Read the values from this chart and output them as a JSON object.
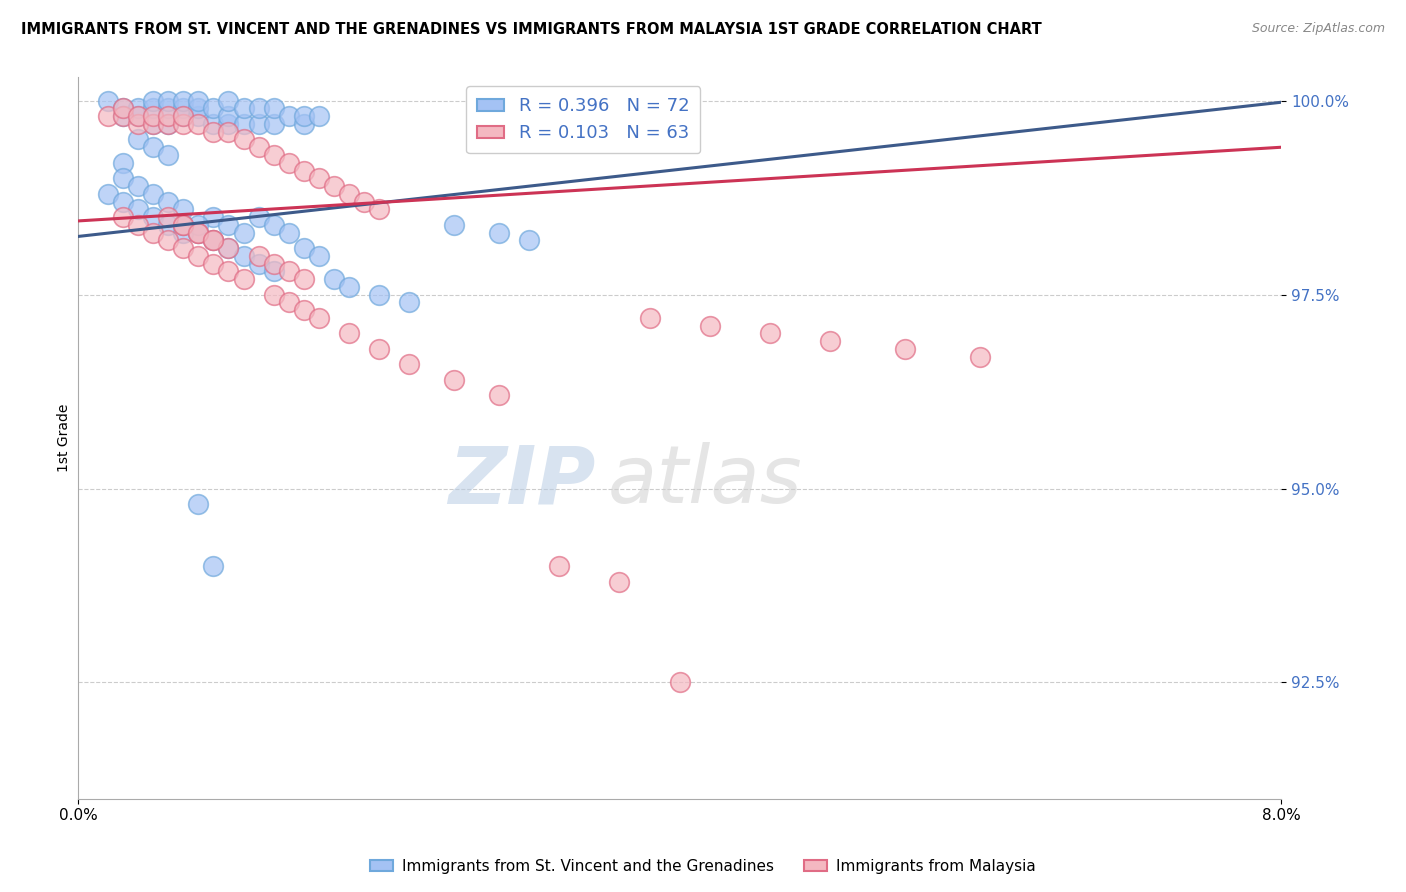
{
  "title": "IMMIGRANTS FROM ST. VINCENT AND THE GRENADINES VS IMMIGRANTS FROM MALAYSIA 1ST GRADE CORRELATION CHART",
  "source": "Source: ZipAtlas.com",
  "ylabel": "1st Grade",
  "blue_label": "Immigrants from St. Vincent and the Grenadines",
  "pink_label": "Immigrants from Malaysia",
  "blue_R": "0.396",
  "blue_N": "72",
  "pink_R": "0.103",
  "pink_N": "63",
  "blue_color": "#a4c2f4",
  "pink_color": "#f4b8c1",
  "blue_edge_color": "#6fa8dc",
  "pink_edge_color": "#e06c85",
  "blue_line_color": "#3d5a8a",
  "pink_line_color": "#cc3355",
  "watermark_color": "#dde8f5",
  "ytick_color": "#4472c4",
  "blue_x": [
    0.002,
    0.003,
    0.003,
    0.004,
    0.004,
    0.005,
    0.005,
    0.005,
    0.006,
    0.006,
    0.006,
    0.007,
    0.007,
    0.007,
    0.008,
    0.008,
    0.008,
    0.009,
    0.009,
    0.01,
    0.01,
    0.01,
    0.011,
    0.011,
    0.012,
    0.012,
    0.013,
    0.013,
    0.014,
    0.015,
    0.015,
    0.016,
    0.004,
    0.005,
    0.006,
    0.003,
    0.003,
    0.004,
    0.005,
    0.006,
    0.007,
    0.007,
    0.008,
    0.009,
    0.01,
    0.011,
    0.012,
    0.013,
    0.017,
    0.018,
    0.02,
    0.022,
    0.025,
    0.028,
    0.03,
    0.015,
    0.016,
    0.009,
    0.01,
    0.011,
    0.012,
    0.013,
    0.014,
    0.002,
    0.003,
    0.004,
    0.005,
    0.006,
    0.007,
    0.008,
    0.008,
    0.009
  ],
  "blue_y": [
    1.0,
    0.999,
    0.998,
    0.998,
    0.999,
    0.997,
    0.999,
    1.0,
    0.997,
    0.999,
    1.0,
    0.998,
    0.999,
    1.0,
    0.998,
    0.999,
    1.0,
    0.997,
    0.999,
    0.997,
    0.998,
    1.0,
    0.997,
    0.999,
    0.997,
    0.999,
    0.997,
    0.999,
    0.998,
    0.997,
    0.998,
    0.998,
    0.995,
    0.994,
    0.993,
    0.992,
    0.99,
    0.989,
    0.988,
    0.987,
    0.986,
    0.984,
    0.983,
    0.982,
    0.981,
    0.98,
    0.979,
    0.978,
    0.977,
    0.976,
    0.975,
    0.974,
    0.984,
    0.983,
    0.982,
    0.981,
    0.98,
    0.985,
    0.984,
    0.983,
    0.985,
    0.984,
    0.983,
    0.988,
    0.987,
    0.986,
    0.985,
    0.984,
    0.983,
    0.984,
    0.948,
    0.94
  ],
  "pink_x": [
    0.002,
    0.003,
    0.003,
    0.004,
    0.004,
    0.005,
    0.005,
    0.006,
    0.006,
    0.007,
    0.007,
    0.008,
    0.009,
    0.01,
    0.011,
    0.012,
    0.013,
    0.014,
    0.015,
    0.016,
    0.017,
    0.018,
    0.019,
    0.02,
    0.007,
    0.008,
    0.009,
    0.01,
    0.003,
    0.004,
    0.005,
    0.006,
    0.007,
    0.008,
    0.009,
    0.01,
    0.011,
    0.013,
    0.014,
    0.015,
    0.016,
    0.018,
    0.02,
    0.022,
    0.025,
    0.028,
    0.012,
    0.013,
    0.014,
    0.015,
    0.006,
    0.007,
    0.008,
    0.009,
    0.038,
    0.042,
    0.046,
    0.05,
    0.055,
    0.06,
    0.032,
    0.036,
    0.04
  ],
  "pink_y": [
    0.998,
    0.998,
    0.999,
    0.997,
    0.998,
    0.997,
    0.998,
    0.997,
    0.998,
    0.997,
    0.998,
    0.997,
    0.996,
    0.996,
    0.995,
    0.994,
    0.993,
    0.992,
    0.991,
    0.99,
    0.989,
    0.988,
    0.987,
    0.986,
    0.984,
    0.983,
    0.982,
    0.981,
    0.985,
    0.984,
    0.983,
    0.982,
    0.981,
    0.98,
    0.979,
    0.978,
    0.977,
    0.975,
    0.974,
    0.973,
    0.972,
    0.97,
    0.968,
    0.966,
    0.964,
    0.962,
    0.98,
    0.979,
    0.978,
    0.977,
    0.985,
    0.984,
    0.983,
    0.982,
    0.972,
    0.971,
    0.97,
    0.969,
    0.968,
    0.967,
    0.94,
    0.938,
    0.925
  ],
  "blue_line_x0": 0.0,
  "blue_line_x1": 0.08,
  "blue_line_y0": 0.9825,
  "blue_line_y1": 0.9998,
  "pink_line_x0": 0.0,
  "pink_line_x1": 0.08,
  "pink_line_y0": 0.9845,
  "pink_line_y1": 0.994,
  "xlim": [
    0.0,
    0.08
  ],
  "ylim": [
    0.91,
    1.003
  ],
  "yticks": [
    0.925,
    0.95,
    0.975,
    1.0
  ],
  "ytick_labels": [
    "92.5%",
    "95.0%",
    "97.5%",
    "100.0%"
  ]
}
